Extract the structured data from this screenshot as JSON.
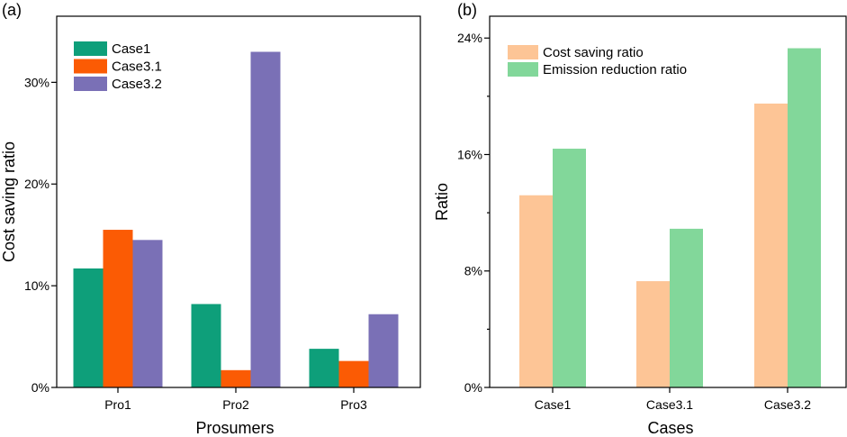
{
  "chart_data": [
    {
      "panel_label": "(a)",
      "type": "bar",
      "title": "",
      "xlabel": "Prosumers",
      "ylabel": "Cost saving ratio",
      "categories": [
        "Pro1",
        "Pro2",
        "Pro3"
      ],
      "series": [
        {
          "name": "Case1",
          "color": "#0e9f7a",
          "values": [
            11.7,
            8.2,
            3.8
          ]
        },
        {
          "name": "Case3.1",
          "color": "#fb5b04",
          "values": [
            15.5,
            1.7,
            2.6
          ]
        },
        {
          "name": "Case3.2",
          "color": "#7a70b6",
          "values": [
            14.5,
            33.0,
            7.2
          ]
        }
      ],
      "ylim": [
        0,
        36.5
      ],
      "yticks": [
        0,
        10,
        20,
        30
      ],
      "ytick_labels": [
        "0%",
        "10%",
        "20%",
        "30%"
      ],
      "legend": "top-left"
    },
    {
      "panel_label": "(b)",
      "type": "bar",
      "title": "",
      "xlabel": "Cases",
      "ylabel": "Ratio",
      "categories": [
        "Case1",
        "Case3.1",
        "Case3.2"
      ],
      "series": [
        {
          "name": "Cost saving ratio",
          "color": "#fdc596",
          "values": [
            13.2,
            7.3,
            19.5
          ]
        },
        {
          "name": "Emission reduction ratio",
          "color": "#82d79a",
          "values": [
            16.4,
            10.9,
            23.3
          ]
        }
      ],
      "ylim": [
        0,
        25.5
      ],
      "yticks": [
        0,
        8,
        16,
        24
      ],
      "ytick_labels": [
        "0%",
        "8%",
        "16%",
        "24%"
      ],
      "minor_yticks": [
        4,
        12,
        20
      ],
      "legend": "top-left"
    }
  ]
}
